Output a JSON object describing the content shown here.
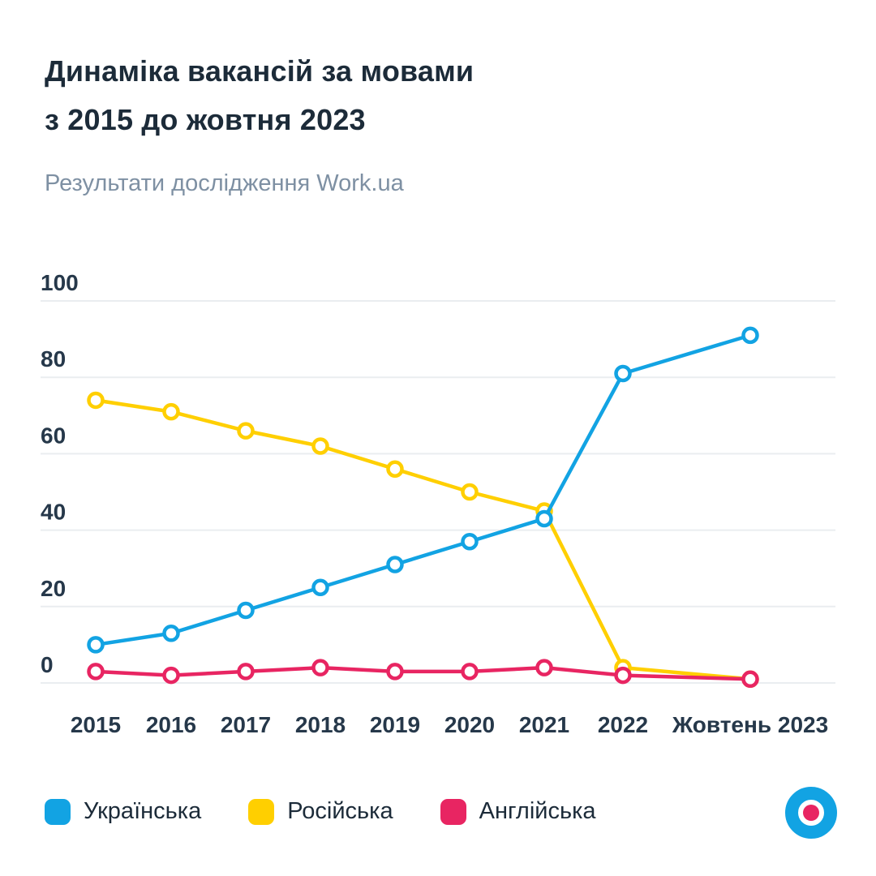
{
  "header": {
    "title_line1": "Динаміка вакансій за мовами",
    "title_line2": "з 2015 до жовтня 2023",
    "subtitle": "Результати дослідження Work.ua"
  },
  "chart_data": {
    "type": "line",
    "title": "Динаміка вакансій за мовами з 2015 до жовтня 2023",
    "subtitle": "Результати дослідження Work.ua",
    "categories": [
      "2015",
      "2016",
      "2017",
      "2018",
      "2019",
      "2020",
      "2021",
      "2022",
      "Жовтень 2023"
    ],
    "series": [
      {
        "name": "Українська",
        "color": "#12A3E3",
        "values": [
          10,
          13,
          19,
          25,
          31,
          37,
          43,
          81,
          91
        ]
      },
      {
        "name": "Російська",
        "color": "#FFCF00",
        "values": [
          74,
          71,
          66,
          62,
          56,
          50,
          45,
          4,
          1
        ]
      },
      {
        "name": "Англійська",
        "color": "#E82562",
        "values": [
          3,
          2,
          3,
          4,
          3,
          3,
          4,
          2,
          1
        ]
      }
    ],
    "xlabel": "",
    "ylabel": "",
    "ylim": [
      0,
      100
    ],
    "yticks": [
      0,
      20,
      40,
      60,
      80,
      100
    ],
    "grid": true,
    "legend_position": "bottom",
    "marker": "open-circle"
  },
  "logo": {
    "label": "work-ua-logo",
    "ring_color": "#12A3E3",
    "dot_color": "#E82562"
  }
}
